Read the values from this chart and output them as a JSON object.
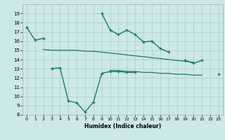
{
  "x": [
    0,
    1,
    2,
    3,
    4,
    5,
    6,
    7,
    8,
    9,
    10,
    11,
    12,
    13,
    14,
    15,
    16,
    17,
    18,
    19,
    20,
    21,
    22,
    23
  ],
  "line1": [
    17.5,
    16.1,
    16.3,
    null,
    null,
    null,
    null,
    null,
    null,
    19.0,
    17.2,
    16.7,
    17.2,
    16.7,
    15.9,
    16.0,
    15.2,
    14.8,
    null,
    13.9,
    13.6,
    13.9,
    null,
    12.4
  ],
  "line2": [
    null,
    null,
    15.1,
    15.0,
    15.0,
    15.0,
    15.0,
    14.9,
    14.9,
    14.8,
    14.7,
    14.6,
    14.5,
    14.4,
    14.3,
    14.2,
    14.1,
    14.0,
    13.9,
    13.8,
    13.7,
    null,
    null,
    12.4
  ],
  "line3": [
    null,
    null,
    null,
    null,
    null,
    null,
    null,
    null,
    null,
    null,
    12.8,
    12.8,
    12.7,
    12.7,
    12.6,
    12.6,
    12.5,
    12.5,
    12.4,
    12.4,
    12.3,
    12.3,
    null,
    12.2
  ],
  "line4": [
    null,
    null,
    null,
    13.0,
    13.1,
    9.5,
    9.3,
    8.3,
    9.4,
    12.5,
    12.7,
    12.7,
    12.6,
    12.6,
    null,
    null,
    null,
    null,
    null,
    null,
    null,
    null,
    null,
    null
  ],
  "line_color": "#1a7a6a",
  "bg_color": "#cce8e8",
  "grid_color": "#aacccc",
  "xlabel": "Humidex (Indice chaleur)",
  "ylim": [
    8,
    20
  ],
  "xlim": [
    -0.5,
    23.5
  ],
  "yticks": [
    8,
    9,
    10,
    11,
    12,
    13,
    14,
    15,
    16,
    17,
    18,
    19
  ],
  "xticks": [
    0,
    1,
    2,
    3,
    4,
    5,
    6,
    7,
    8,
    9,
    10,
    11,
    12,
    13,
    14,
    15,
    16,
    17,
    18,
    19,
    20,
    21,
    22,
    23
  ]
}
